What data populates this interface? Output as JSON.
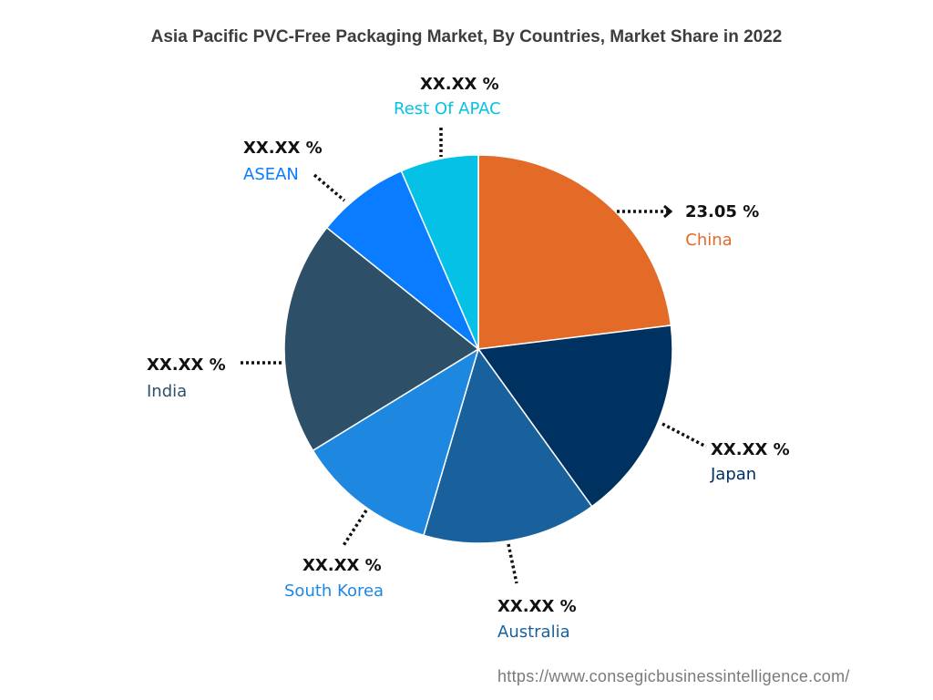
{
  "chart_data": {
    "type": "pie",
    "title": "Asia Pacific PVC-Free Packaging Market, By Countries, Market Share in 2022",
    "slices": [
      {
        "name": "China",
        "value_label": "23.05 %",
        "value": 23.05,
        "color": "#e36a27",
        "name_color": "#e36a27"
      },
      {
        "name": "Japan",
        "value_label": "XX.XX %",
        "value": 17.0,
        "color": "#003261",
        "name_color": "#003261"
      },
      {
        "name": "Australia",
        "value_label": "XX.XX %",
        "value": 14.5,
        "color": "#19619d",
        "name_color": "#19619d"
      },
      {
        "name": "South Korea",
        "value_label": "XX.XX %",
        "value": 11.7,
        "color": "#1e87e0",
        "name_color": "#1e87e0"
      },
      {
        "name": "India",
        "value_label": "XX.XX %",
        "value": 19.5,
        "color": "#2d4f68",
        "name_color": "#2d4f68"
      },
      {
        "name": "ASEAN",
        "value_label": "XX.XX %",
        "value": 7.75,
        "color": "#0a7cff",
        "name_color": "#0a7cff"
      },
      {
        "name": "Rest Of APAC",
        "value_label": "XX.XX %",
        "value": 6.5,
        "color": "#06c1e6",
        "name_color": "#06c1e6"
      }
    ]
  },
  "footer": {
    "source": "https://www.consegicbusinessintelligence.com/"
  }
}
